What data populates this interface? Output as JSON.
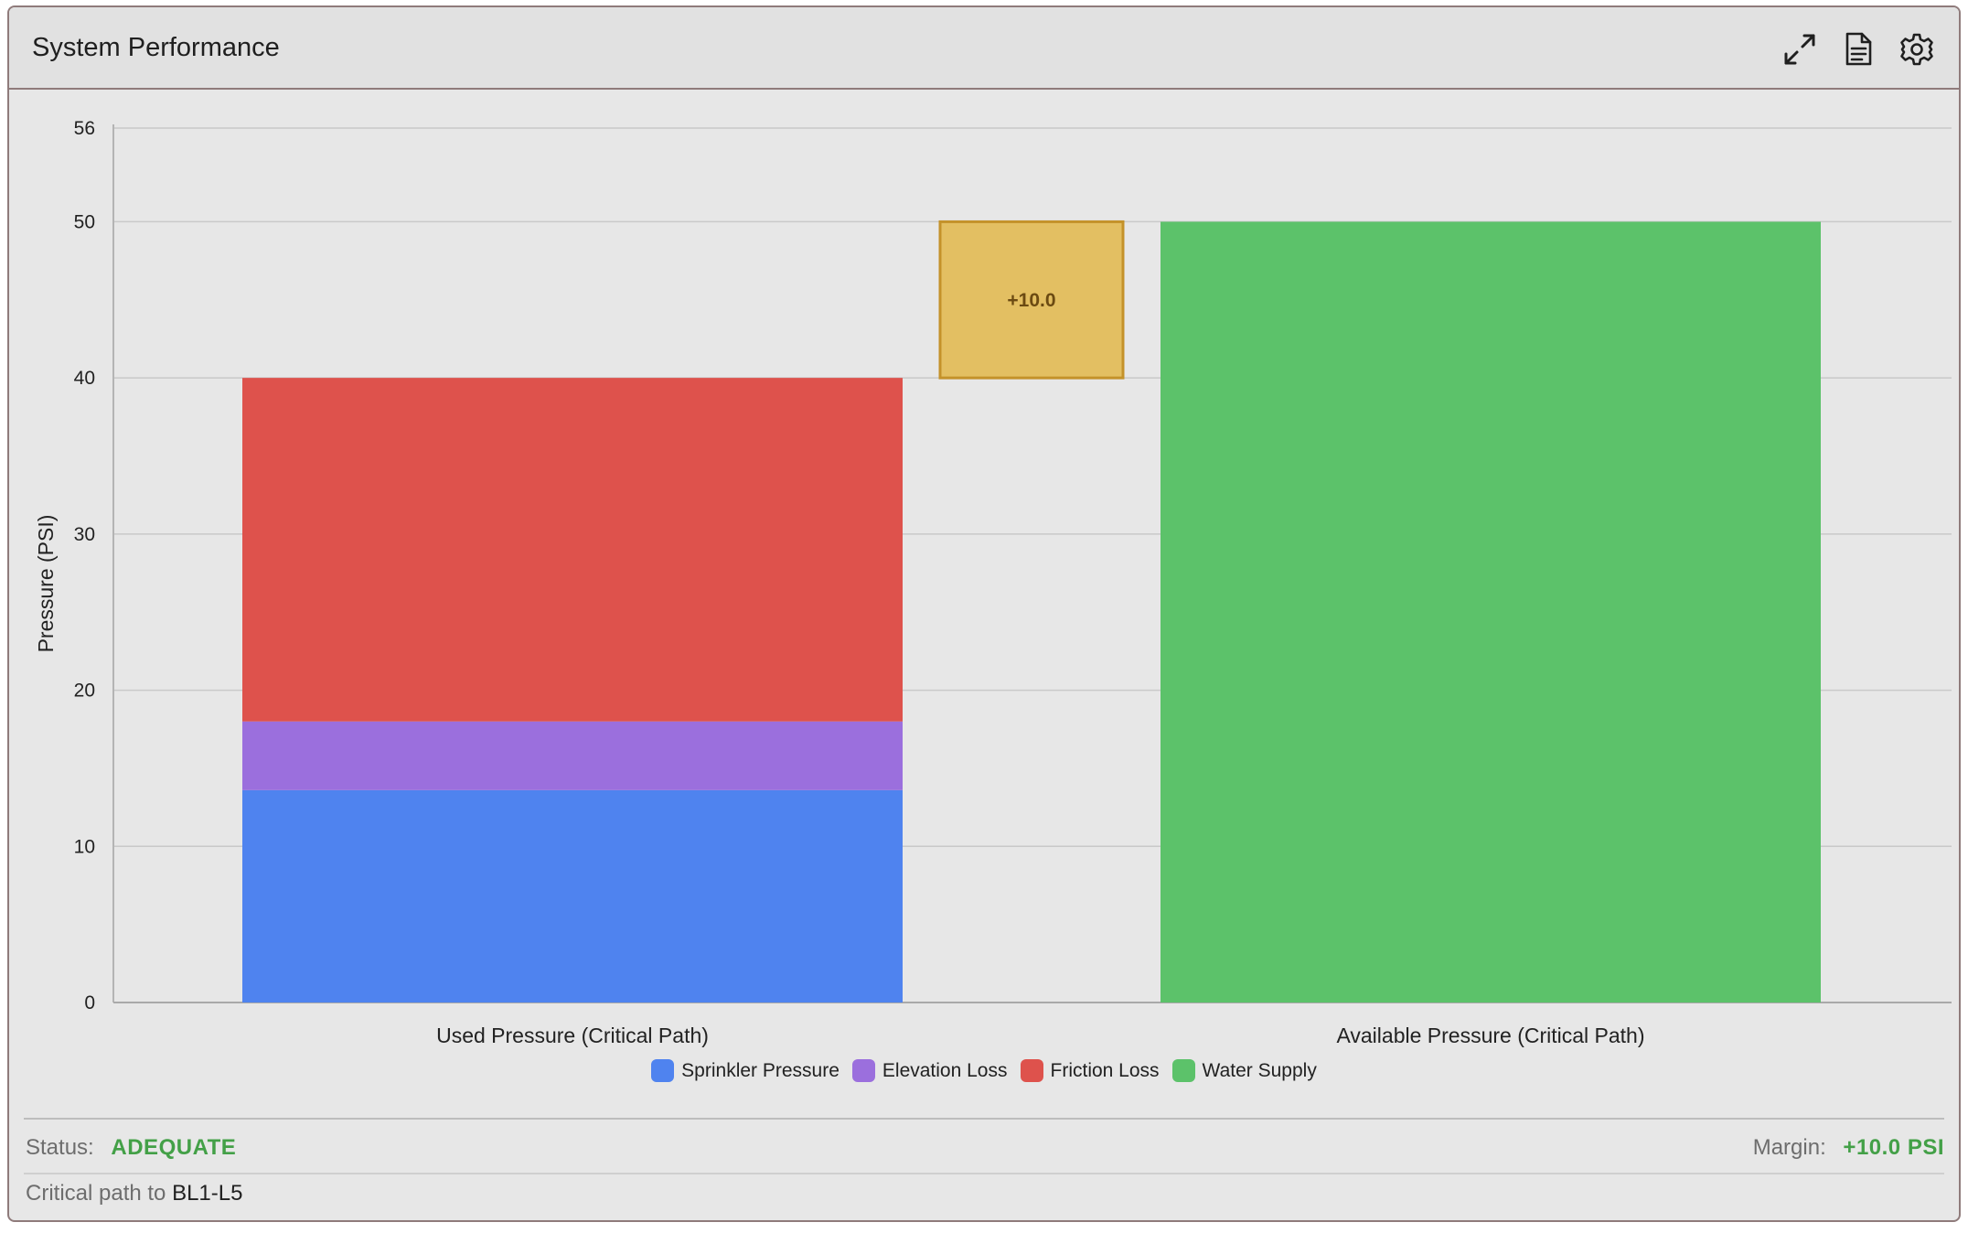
{
  "panel": {
    "title": "System Performance",
    "icons": [
      "expand-icon",
      "report-icon",
      "settings-icon"
    ]
  },
  "chart_data": {
    "type": "bar",
    "stacked": true,
    "categories": [
      "Used Pressure (Critical Path)",
      "Available Pressure (Critical Path)"
    ],
    "series": [
      {
        "name": "Sprinkler Pressure",
        "color": "#4f83ef",
        "values": [
          13.6,
          0
        ]
      },
      {
        "name": "Elevation Loss",
        "color": "#9b6fdd",
        "values": [
          4.4,
          0
        ]
      },
      {
        "name": "Friction Loss",
        "color": "#de524c",
        "values": [
          22.0,
          0
        ]
      },
      {
        "name": "Water Supply",
        "color": "#5cc26a",
        "values": [
          0,
          50.0
        ]
      }
    ],
    "margin_box": {
      "label": "+10.0",
      "from": 40.0,
      "to": 50.0,
      "color": "#e3bf62",
      "border": "#c4922a"
    },
    "ylabel": "Pressure (PSI)",
    "xlabel": "",
    "ylim": [
      0,
      56
    ],
    "yticks": [
      0,
      10,
      20,
      30,
      40,
      50,
      56
    ],
    "grid": true,
    "legend_position": "bottom"
  },
  "status": {
    "status_label": "Status:",
    "status_value": "ADEQUATE",
    "margin_label": "Margin:",
    "margin_value": "+10.0 PSI",
    "path_prefix": "Critical path to",
    "path_target": "BL1-L5"
  }
}
